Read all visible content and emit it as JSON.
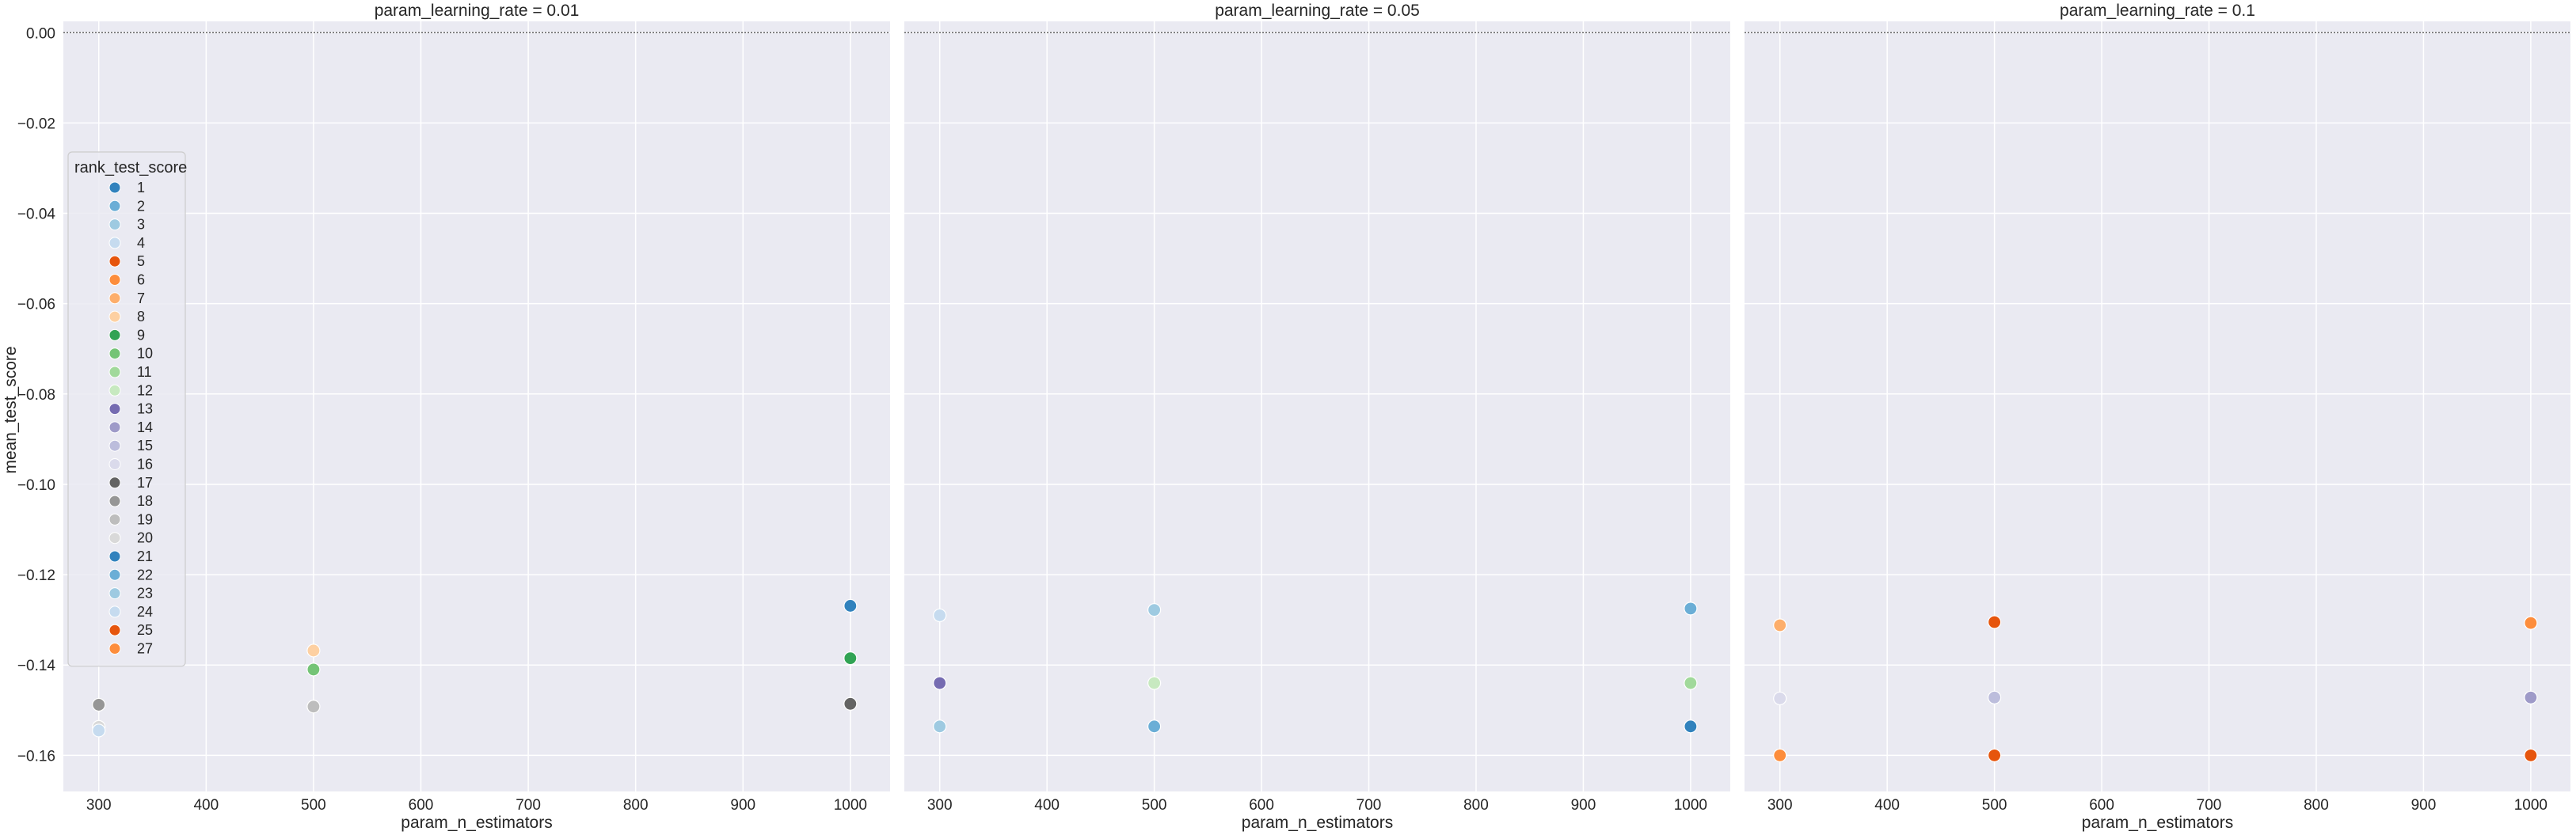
{
  "chart_data": {
    "type": "scatter",
    "ylabel": "mean_test_score",
    "xlabel": "param_n_estimators",
    "x_ticks": [
      300,
      400,
      500,
      600,
      700,
      800,
      900,
      1000
    ],
    "y_ticks": [
      0.0,
      -0.02,
      -0.04,
      -0.06,
      -0.08,
      -0.1,
      -0.12,
      -0.14,
      -0.16
    ],
    "y_tick_labels": [
      "0.00",
      "−0.02",
      "−0.04",
      "−0.06",
      "−0.08",
      "−0.10",
      "−0.12",
      "−0.14",
      "−0.16"
    ],
    "xlim": [
      267,
      1037
    ],
    "ylim": [
      -0.168,
      0.0025
    ],
    "reference_line_y": 0,
    "grid": true,
    "legend_placement": "center-left",
    "legend": {
      "title": "rank_test_score",
      "entries": [
        {
          "rank": "1",
          "color": "#3182bd"
        },
        {
          "rank": "2",
          "color": "#6baed6"
        },
        {
          "rank": "3",
          "color": "#9ecae1"
        },
        {
          "rank": "4",
          "color": "#c6dbef"
        },
        {
          "rank": "5",
          "color": "#e6550d"
        },
        {
          "rank": "6",
          "color": "#fd8d3c"
        },
        {
          "rank": "7",
          "color": "#fdae6b"
        },
        {
          "rank": "8",
          "color": "#fdd0a2"
        },
        {
          "rank": "9",
          "color": "#31a354"
        },
        {
          "rank": "10",
          "color": "#74c476"
        },
        {
          "rank": "11",
          "color": "#a1d99b"
        },
        {
          "rank": "12",
          "color": "#c7e9c0"
        },
        {
          "rank": "13",
          "color": "#756bb1"
        },
        {
          "rank": "14",
          "color": "#9e9ac8"
        },
        {
          "rank": "15",
          "color": "#bcbddc"
        },
        {
          "rank": "16",
          "color": "#dadaeb"
        },
        {
          "rank": "17",
          "color": "#636363"
        },
        {
          "rank": "18",
          "color": "#969696"
        },
        {
          "rank": "19",
          "color": "#bdbdbd"
        },
        {
          "rank": "20",
          "color": "#d9d9d9"
        },
        {
          "rank": "21",
          "color": "#3182bd"
        },
        {
          "rank": "22",
          "color": "#6baed6"
        },
        {
          "rank": "23",
          "color": "#9ecae1"
        },
        {
          "rank": "24",
          "color": "#c6dbef"
        },
        {
          "rank": "25",
          "color": "#e6550d"
        },
        {
          "rank": "27",
          "color": "#fd8d3c"
        }
      ]
    },
    "panels": [
      {
        "title": "param_learning_rate = 0.01",
        "points": [
          {
            "x": 1000,
            "y": -0.1269,
            "rank": "1"
          },
          {
            "x": 1000,
            "y": -0.1385,
            "rank": "9"
          },
          {
            "x": 1000,
            "y": -0.1486,
            "rank": "17"
          },
          {
            "x": 500,
            "y": -0.1368,
            "rank": "8"
          },
          {
            "x": 500,
            "y": -0.141,
            "rank": "10"
          },
          {
            "x": 500,
            "y": -0.1492,
            "rank": "19"
          },
          {
            "x": 300,
            "y": -0.1488,
            "rank": "18"
          },
          {
            "x": 300,
            "y": -0.1537,
            "rank": "20"
          },
          {
            "x": 300,
            "y": -0.1545,
            "rank": "24"
          }
        ]
      },
      {
        "title": "param_learning_rate = 0.05",
        "points": [
          {
            "x": 1000,
            "y": -0.1275,
            "rank": "2"
          },
          {
            "x": 500,
            "y": -0.1278,
            "rank": "3"
          },
          {
            "x": 300,
            "y": -0.129,
            "rank": "4"
          },
          {
            "x": 1000,
            "y": -0.144,
            "rank": "11"
          },
          {
            "x": 500,
            "y": -0.144,
            "rank": "12"
          },
          {
            "x": 300,
            "y": -0.144,
            "rank": "13"
          },
          {
            "x": 1000,
            "y": -0.1536,
            "rank": "21"
          },
          {
            "x": 500,
            "y": -0.1536,
            "rank": "22"
          },
          {
            "x": 300,
            "y": -0.1536,
            "rank": "23"
          }
        ]
      },
      {
        "title": "param_learning_rate = 0.1",
        "points": [
          {
            "x": 500,
            "y": -0.1305,
            "rank": "5"
          },
          {
            "x": 1000,
            "y": -0.1307,
            "rank": "6"
          },
          {
            "x": 300,
            "y": -0.1312,
            "rank": "7"
          },
          {
            "x": 1000,
            "y": -0.1472,
            "rank": "14"
          },
          {
            "x": 500,
            "y": -0.1472,
            "rank": "15"
          },
          {
            "x": 300,
            "y": -0.1474,
            "rank": "16"
          },
          {
            "x": 1000,
            "y": -0.16,
            "rank": "25"
          },
          {
            "x": 500,
            "y": -0.16,
            "rank": "25"
          },
          {
            "x": 300,
            "y": -0.16,
            "rank": "27"
          }
        ]
      }
    ]
  }
}
